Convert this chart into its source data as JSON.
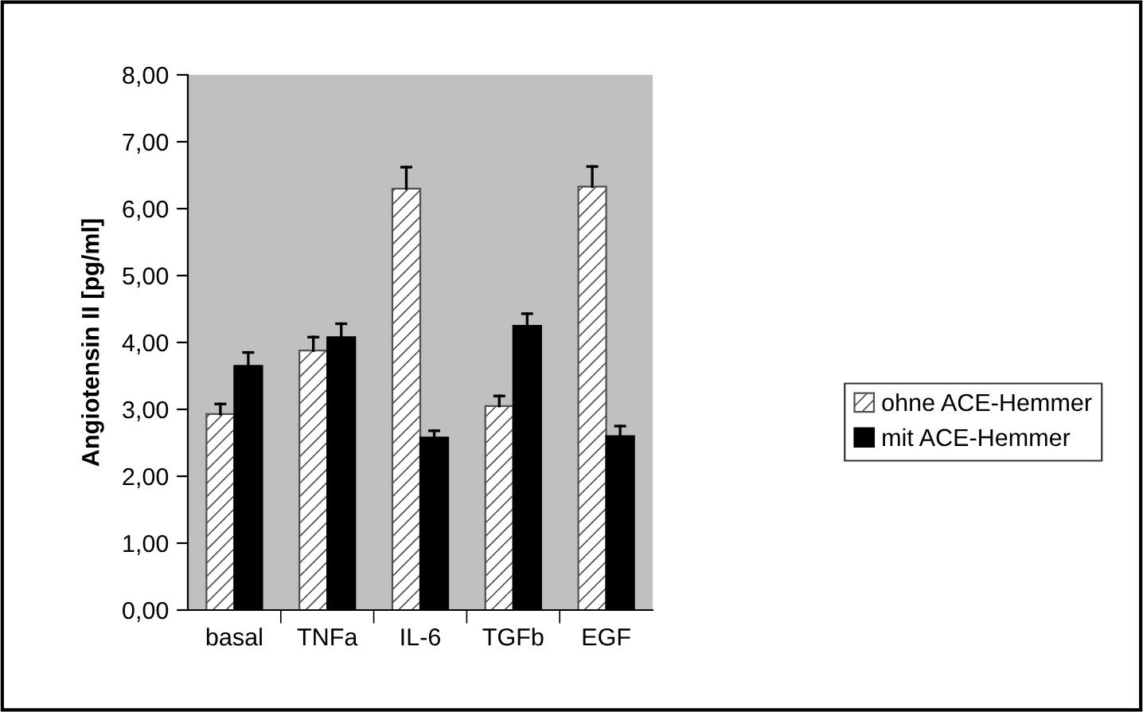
{
  "chart_data": {
    "type": "bar",
    "ylabel": "Angiotensin II [pg/ml]",
    "categories": [
      "basal",
      "TNFa",
      "IL-6",
      "TGFb",
      "EGF"
    ],
    "series": [
      {
        "name": "ohne ACE-Hemmer",
        "color": "#505050",
        "values": [
          2.93,
          3.88,
          6.3,
          3.05,
          6.33
        ],
        "errors": [
          [
            2.93,
            3.08
          ],
          [
            3.88,
            4.08
          ],
          [
            6.3,
            6.62
          ],
          [
            3.05,
            3.2
          ],
          [
            6.33,
            6.63
          ]
        ]
      },
      {
        "name": "mit ACE-Hemmer",
        "color": "#000000",
        "values": [
          3.65,
          4.08,
          2.58,
          4.25,
          2.6
        ],
        "errors": [
          [
            3.65,
            3.85
          ],
          [
            4.08,
            4.28
          ],
          [
            2.58,
            2.68
          ],
          [
            4.25,
            4.43
          ],
          [
            2.6,
            2.75
          ]
        ]
      }
    ],
    "ylim": [
      0,
      8
    ],
    "yticks": [
      {
        "value": 0,
        "label": "0,00"
      },
      {
        "value": 1,
        "label": "1,00"
      },
      {
        "value": 2,
        "label": "2,00"
      },
      {
        "value": 3,
        "label": "3,00"
      },
      {
        "value": 4,
        "label": "4,00"
      },
      {
        "value": 5,
        "label": "5,00"
      },
      {
        "value": 6,
        "label": "6,00"
      },
      {
        "value": 7,
        "label": "7,00"
      },
      {
        "value": 8,
        "label": "8,00"
      }
    ],
    "grid": false,
    "legend": "right"
  }
}
